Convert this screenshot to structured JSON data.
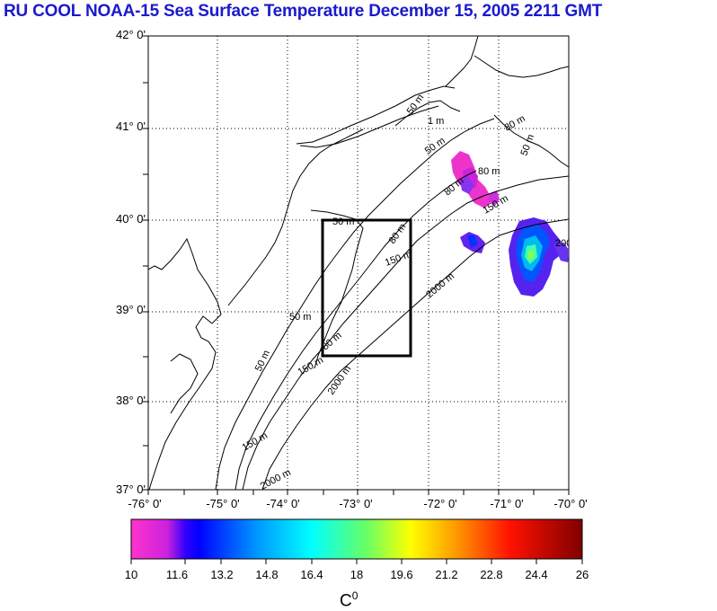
{
  "title": "RU COOL  NOAA-15 Sea Surface Temperature December 15, 2005 2211 GMT",
  "lat_labels": [
    "42° 0'",
    "41° 0'",
    "40° 0'",
    "39° 0'",
    "38° 0'",
    "37° 0'"
  ],
  "lon_labels": [
    "-76° 0'",
    "-75° 0'",
    "-74° 0'",
    "-73° 0'",
    "-72° 0'",
    "-71° 0'",
    "-70° 0'"
  ],
  "colorbar": {
    "ticks": [
      "10",
      "11.6",
      "13.2",
      "14.8",
      "16.4",
      "18",
      "19.6",
      "21.2",
      "22.8",
      "24.4",
      "26"
    ],
    "unit": "C",
    "unit_sup": "0",
    "colors": [
      "#ff33cc",
      "#8800ff",
      "#0000ff",
      "#0088ff",
      "#00ffff",
      "#66ff66",
      "#ffff00",
      "#ff9900",
      "#ff0000",
      "#990000"
    ]
  },
  "depth_labels": [
    "50 m",
    "50 m",
    "50 m",
    "50 m",
    "50 m",
    "50 m",
    "80 m",
    "80 m",
    "80 m",
    "80 m",
    "80 m",
    "150 m",
    "150 m",
    "150 m",
    "150 m",
    "2000 m",
    "2000 m",
    "2000 m",
    "200",
    "1 m"
  ]
}
